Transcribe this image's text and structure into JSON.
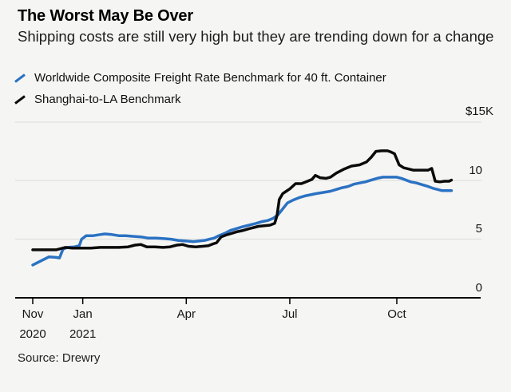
{
  "colors": {
    "background": "#f5f5f3",
    "grid": "#e3e3e0",
    "axis": "#000000",
    "series_blue": "#2b72c3",
    "series_black": "#0b0b0b"
  },
  "footer": {
    "source": "Source: Drewry"
  },
  "chart_data": {
    "type": "line",
    "title": "The Worst May Be Over",
    "subtitle": "Shipping costs are still very high but they are trending down for a change",
    "source": "Source: Drewry",
    "unit": "USD thousands per 40 ft. container",
    "legend_position": "top-left",
    "grid": "horizontal-only",
    "x_axis": {
      "type": "time",
      "note": "day = days since first data point (late Nov 2020); data ends late Nov 2021",
      "ticks": [
        {
          "label": "Nov",
          "sublabel": "2020",
          "day": 0
        },
        {
          "label": "Jan",
          "sublabel": "2021",
          "day": 43
        },
        {
          "label": "Apr",
          "sublabel": "",
          "day": 132
        },
        {
          "label": "Jul",
          "sublabel": "",
          "day": 221
        },
        {
          "label": "Oct",
          "sublabel": "",
          "day": 313
        }
      ]
    },
    "y_axis": {
      "range_k_usd": [
        0,
        15
      ],
      "ticks": [
        {
          "label": "$15K",
          "value": 15
        },
        {
          "label": "10",
          "value": 10
        },
        {
          "label": "5",
          "value": 5
        },
        {
          "label": "0",
          "value": 0
        }
      ]
    },
    "series": [
      {
        "name": "Worldwide Composite Freight Rate Benchmark for 40 ft. Container",
        "color": "#2b72c3",
        "points": [
          [
            0,
            2.8
          ],
          [
            7,
            3.15
          ],
          [
            14,
            3.5
          ],
          [
            20,
            3.45
          ],
          [
            23,
            3.4
          ],
          [
            26,
            4.15
          ],
          [
            30,
            4.3
          ],
          [
            36,
            4.35
          ],
          [
            40,
            4.45
          ],
          [
            42,
            5.0
          ],
          [
            46,
            5.3
          ],
          [
            52,
            5.3
          ],
          [
            58,
            5.4
          ],
          [
            62,
            5.45
          ],
          [
            68,
            5.4
          ],
          [
            74,
            5.3
          ],
          [
            80,
            5.3
          ],
          [
            86,
            5.25
          ],
          [
            93,
            5.2
          ],
          [
            99,
            5.1
          ],
          [
            106,
            5.1
          ],
          [
            113,
            5.05
          ],
          [
            119,
            5.0
          ],
          [
            125,
            4.9
          ],
          [
            132,
            4.85
          ],
          [
            138,
            4.8
          ],
          [
            143,
            4.85
          ],
          [
            148,
            4.9
          ],
          [
            152,
            5.0
          ],
          [
            156,
            5.1
          ],
          [
            160,
            5.3
          ],
          [
            165,
            5.5
          ],
          [
            170,
            5.75
          ],
          [
            175,
            5.9
          ],
          [
            180,
            6.05
          ],
          [
            186,
            6.2
          ],
          [
            192,
            6.35
          ],
          [
            197,
            6.5
          ],
          [
            202,
            6.6
          ],
          [
            207,
            6.8
          ],
          [
            211,
            7.1
          ],
          [
            215,
            7.6
          ],
          [
            219,
            8.1
          ],
          [
            224,
            8.35
          ],
          [
            229,
            8.55
          ],
          [
            234,
            8.7
          ],
          [
            239,
            8.8
          ],
          [
            244,
            8.9
          ],
          [
            250,
            9.0
          ],
          [
            256,
            9.1
          ],
          [
            261,
            9.25
          ],
          [
            266,
            9.4
          ],
          [
            271,
            9.5
          ],
          [
            276,
            9.7
          ],
          [
            281,
            9.8
          ],
          [
            286,
            9.9
          ],
          [
            291,
            10.05
          ],
          [
            296,
            10.2
          ],
          [
            301,
            10.3
          ],
          [
            308,
            10.3
          ],
          [
            313,
            10.3
          ],
          [
            317,
            10.2
          ],
          [
            321,
            10.05
          ],
          [
            325,
            9.9
          ],
          [
            330,
            9.8
          ],
          [
            335,
            9.65
          ],
          [
            340,
            9.5
          ],
          [
            344,
            9.35
          ],
          [
            348,
            9.25
          ],
          [
            352,
            9.15
          ],
          [
            356,
            9.15
          ],
          [
            360,
            9.15
          ]
        ]
      },
      {
        "name": "Shanghai-to-LA Benchmark",
        "color": "#0b0b0b",
        "points": [
          [
            0,
            4.1
          ],
          [
            10,
            4.1
          ],
          [
            20,
            4.1
          ],
          [
            24,
            4.2
          ],
          [
            28,
            4.3
          ],
          [
            34,
            4.25
          ],
          [
            42,
            4.25
          ],
          [
            50,
            4.25
          ],
          [
            58,
            4.3
          ],
          [
            66,
            4.3
          ],
          [
            74,
            4.3
          ],
          [
            82,
            4.35
          ],
          [
            88,
            4.5
          ],
          [
            93,
            4.55
          ],
          [
            98,
            4.35
          ],
          [
            105,
            4.35
          ],
          [
            112,
            4.3
          ],
          [
            118,
            4.35
          ],
          [
            124,
            4.5
          ],
          [
            129,
            4.55
          ],
          [
            134,
            4.4
          ],
          [
            140,
            4.35
          ],
          [
            146,
            4.4
          ],
          [
            151,
            4.45
          ],
          [
            155,
            4.6
          ],
          [
            158,
            4.7
          ],
          [
            162,
            5.2
          ],
          [
            166,
            5.35
          ],
          [
            171,
            5.5
          ],
          [
            176,
            5.65
          ],
          [
            181,
            5.75
          ],
          [
            186,
            5.9
          ],
          [
            190,
            6.0
          ],
          [
            194,
            6.1
          ],
          [
            199,
            6.15
          ],
          [
            204,
            6.2
          ],
          [
            208,
            6.35
          ],
          [
            210,
            7.0
          ],
          [
            212,
            8.4
          ],
          [
            215,
            8.9
          ],
          [
            218,
            9.1
          ],
          [
            221,
            9.3
          ],
          [
            226,
            9.75
          ],
          [
            231,
            9.75
          ],
          [
            235,
            9.9
          ],
          [
            240,
            10.1
          ],
          [
            243,
            10.45
          ],
          [
            247,
            10.25
          ],
          [
            252,
            10.2
          ],
          [
            256,
            10.3
          ],
          [
            261,
            10.65
          ],
          [
            268,
            11.0
          ],
          [
            274,
            11.25
          ],
          [
            281,
            11.35
          ],
          [
            287,
            11.6
          ],
          [
            291,
            12.0
          ],
          [
            295,
            12.5
          ],
          [
            300,
            12.55
          ],
          [
            305,
            12.55
          ],
          [
            308,
            12.45
          ],
          [
            311,
            12.3
          ],
          [
            315,
            11.35
          ],
          [
            319,
            11.1
          ],
          [
            323,
            11.0
          ],
          [
            327,
            10.9
          ],
          [
            333,
            10.9
          ],
          [
            340,
            10.9
          ],
          [
            343,
            11.05
          ],
          [
            346,
            9.95
          ],
          [
            350,
            9.9
          ],
          [
            354,
            9.95
          ],
          [
            358,
            9.95
          ],
          [
            360,
            10.05
          ]
        ]
      }
    ]
  }
}
